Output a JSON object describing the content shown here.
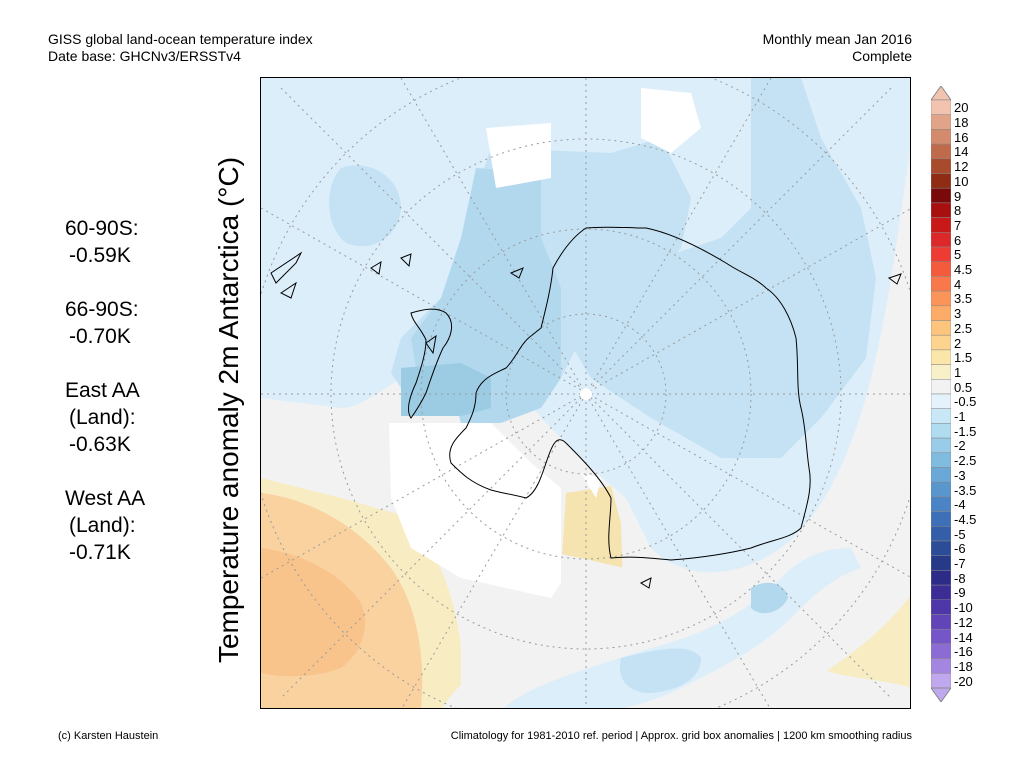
{
  "header": {
    "title": "GISS global land-ocean temperature index",
    "database": "Date base: GHCNv3/ERSSTv4",
    "period": "Monthly mean Jan 2016",
    "status": "Complete"
  },
  "y_axis_label": "Temperature anomaly 2m Antarctica (°C)",
  "stats": [
    {
      "label": "60-90S:",
      "value": "-0.59K"
    },
    {
      "label": "66-90S:",
      "value": "-0.70K"
    },
    {
      "label": "East AA",
      "label2": "(Land):",
      "value": "-0.63K"
    },
    {
      "label": "West AA",
      "label2": "(Land):",
      "value": "-0.71K"
    }
  ],
  "colorbar": {
    "labels": [
      "20",
      "18",
      "16",
      "14",
      "12",
      "10",
      "9",
      "8",
      "7",
      "6",
      "5",
      "4.5",
      "4",
      "3.5",
      "3",
      "2.5",
      "2",
      "1.5",
      "1",
      "0.5",
      "-0.5",
      "-1",
      "-1.5",
      "-2",
      "-2.5",
      "-3",
      "-3.5",
      "-4",
      "-4.5",
      "-5",
      "-6",
      "-7",
      "-8",
      "-9",
      "-10",
      "-12",
      "-14",
      "-16",
      "-18",
      "-20"
    ],
    "colors": [
      "#f2c4b0",
      "#e2a488",
      "#d48a6c",
      "#c06a4c",
      "#a84a2c",
      "#8e2c14",
      "#7a0a0a",
      "#a81010",
      "#c81818",
      "#dc2828",
      "#ec3c34",
      "#f45a3c",
      "#f8784c",
      "#fa9458",
      "#fcac68",
      "#fcc47c",
      "#fcd490",
      "#fbe6aa",
      "#f8f0c8",
      "#f2f2f2",
      "#e4f2fc",
      "#c8e8f8",
      "#b0dcf0",
      "#98cce8",
      "#80bce0",
      "#6aa8d8",
      "#5896cc",
      "#4a84c4",
      "#3e70b8",
      "#345ea8",
      "#2c4c98",
      "#263a88",
      "#2c2c88",
      "#3c2c96",
      "#4c36a8",
      "#6044b8",
      "#7456c8",
      "#8c6cd4",
      "#a486e0",
      "#c0a8ee"
    ],
    "colors_note": "colors top to bottom, end triangles use first/last"
  },
  "map_colors": {
    "background": "#f2f2f2",
    "light_blue": "#dceefa",
    "mid_blue": "#c4e2f3",
    "blue": "#b2d8ee",
    "dark_blue": "#9ccbe4",
    "white": "#ffffff",
    "light_yellow": "#f8ecc2",
    "yellow": "#f5e4b0",
    "orange": "#fad2a0",
    "dark_orange": "#f8c48c",
    "coast": "#000000",
    "grid": "#9a9a9a"
  },
  "footer": {
    "left": "(c) Karsten Haustein",
    "right": "Climatology for 1981-2010 ref. period | Approx. grid box anomalies | 1200 km smoothing radius"
  }
}
